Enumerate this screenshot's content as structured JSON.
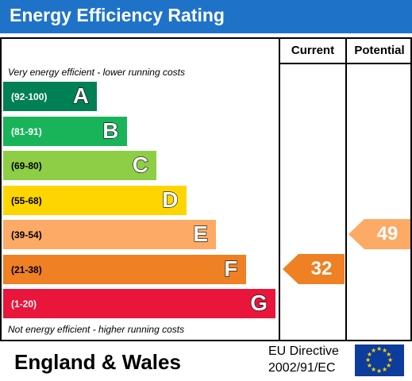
{
  "header": {
    "title": "Energy Efficiency Rating"
  },
  "columns": {
    "current": "Current",
    "potential": "Potential"
  },
  "notes": {
    "top": "Very energy efficient - lower running costs",
    "bottom": "Not energy efficient - higher running costs"
  },
  "chart_data": {
    "type": "bar",
    "categories": [
      "A",
      "B",
      "C",
      "D",
      "E",
      "F",
      "G"
    ],
    "ranges": [
      "(92-100)",
      "(81-91)",
      "(69-80)",
      "(55-68)",
      "(39-54)",
      "(21-38)",
      "(1-20)"
    ],
    "colors": [
      "#008054",
      "#19b459",
      "#8dce46",
      "#ffd500",
      "#fcaa65",
      "#ef8023",
      "#e9153b"
    ],
    "current": {
      "value": 32,
      "band": "F",
      "color": "#ef8023"
    },
    "potential": {
      "value": 49,
      "band": "E",
      "color": "#fcaa65"
    }
  },
  "footer": {
    "region": "England & Wales",
    "directive_line1": "EU Directive",
    "directive_line2": "2002/91/EC"
  },
  "icons": {
    "flag": "eu-flag-icon"
  }
}
